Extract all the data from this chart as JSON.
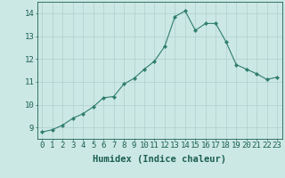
{
  "x": [
    0,
    1,
    2,
    3,
    4,
    5,
    6,
    7,
    8,
    9,
    10,
    11,
    12,
    13,
    14,
    15,
    16,
    17,
    18,
    19,
    20,
    21,
    22,
    23
  ],
  "y": [
    8.8,
    8.9,
    9.1,
    9.4,
    9.6,
    9.9,
    10.3,
    10.35,
    10.9,
    11.15,
    11.55,
    11.9,
    12.55,
    13.85,
    14.1,
    13.25,
    13.55,
    13.55,
    12.75,
    11.75,
    11.55,
    11.35,
    11.1,
    11.2
  ],
  "line_color": "#2e7d6e",
  "marker": "D",
  "marker_size": 2.2,
  "bg_color": "#cce8e4",
  "grid_color": "#b0cfcc",
  "xlabel": "Humidex (Indice chaleur)",
  "ylim": [
    8.5,
    14.5
  ],
  "xlim": [
    -0.5,
    23.5
  ],
  "yticks": [
    9,
    10,
    11,
    12,
    13,
    14
  ],
  "xticks": [
    0,
    1,
    2,
    3,
    4,
    5,
    6,
    7,
    8,
    9,
    10,
    11,
    12,
    13,
    14,
    15,
    16,
    17,
    18,
    19,
    20,
    21,
    22,
    23
  ],
  "tick_color": "#1a5f50",
  "label_fontsize": 7.5,
  "tick_fontsize": 6.5
}
